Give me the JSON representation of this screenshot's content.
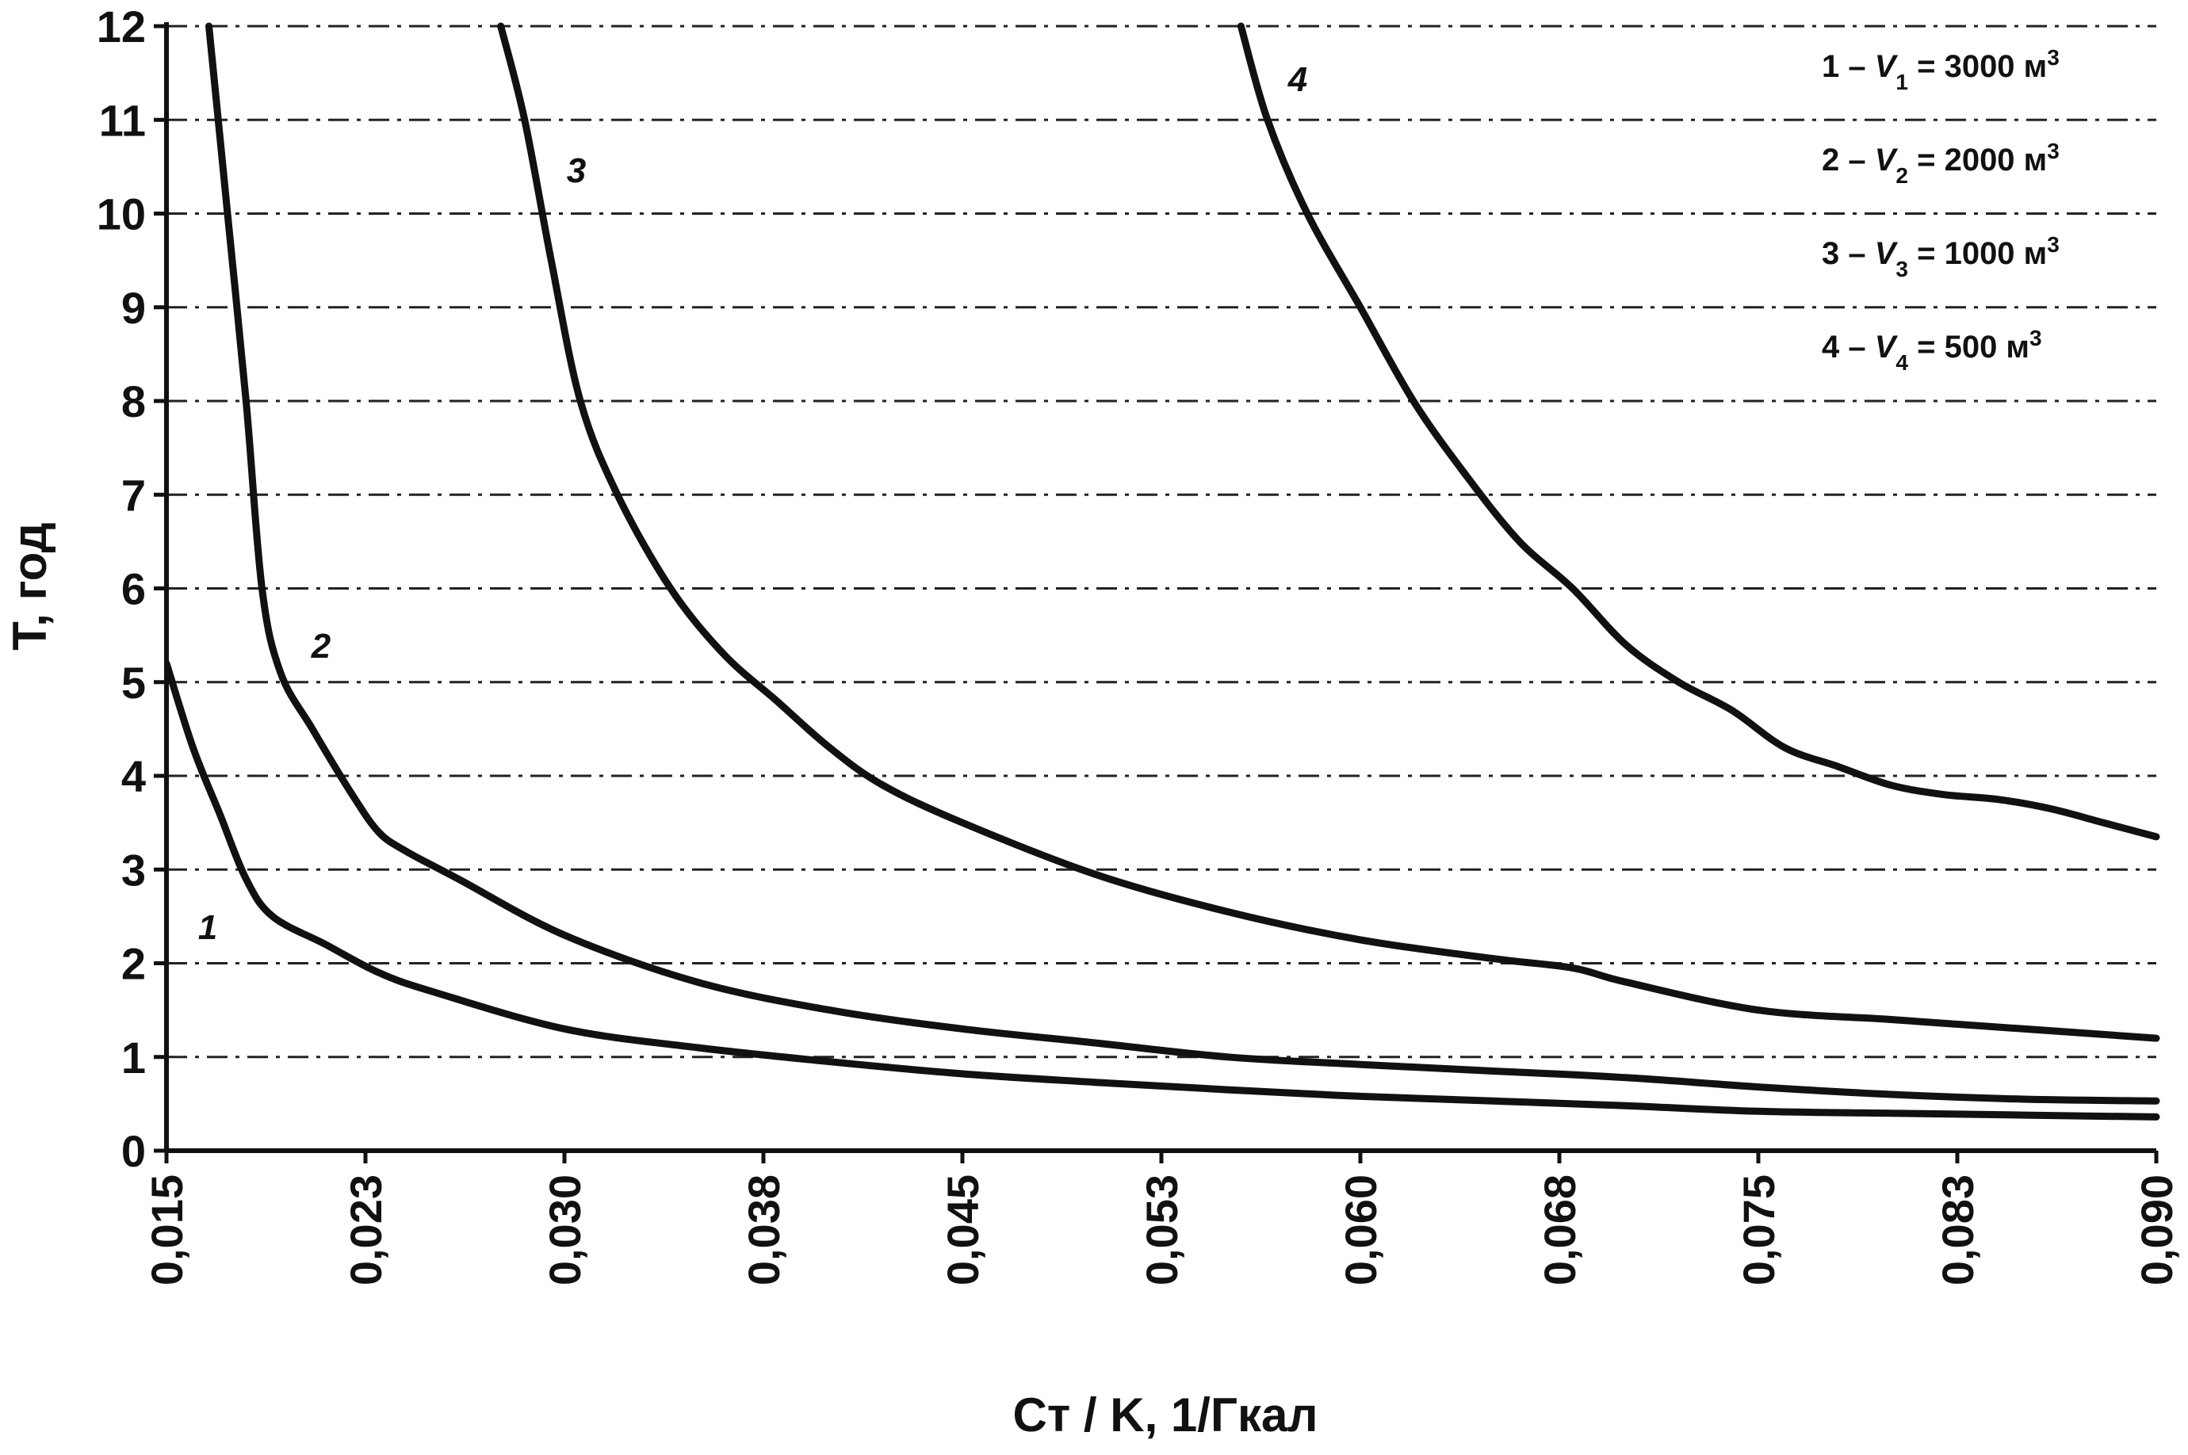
{
  "chart_data": {
    "type": "line",
    "xlabel": "Cт / K, 1/Гкал",
    "ylabel": "T, год",
    "xlim": [
      0.015,
      0.09
    ],
    "ylim": [
      0,
      12
    ],
    "x_ticks": [
      "0,015",
      "0,023",
      "0,030",
      "0,038",
      "0,045",
      "0,053",
      "0,060",
      "0,068",
      "0,075",
      "0,083",
      "0,090"
    ],
    "y_ticks": [
      "0",
      "1",
      "2",
      "3",
      "4",
      "5",
      "6",
      "7",
      "8",
      "9",
      "10",
      "11",
      "12"
    ],
    "grid": "horizontal dash-dot",
    "legend_position": "top-right",
    "legend": [
      {
        "num": "1",
        "var": "V",
        "sub": "1",
        "value": "3000 м",
        "sup": "3"
      },
      {
        "num": "2",
        "var": "V",
        "sub": "2",
        "value": "2000 м",
        "sup": "3"
      },
      {
        "num": "3",
        "var": "V",
        "sub": "3",
        "value": "1000 м",
        "sup": "3"
      },
      {
        "num": "4",
        "var": "V",
        "sub": "4",
        "value": "500 м",
        "sup": "3"
      }
    ],
    "series": [
      {
        "label": "1",
        "x": [
          0.015,
          0.016,
          0.017,
          0.018,
          0.019,
          0.021,
          0.023,
          0.025,
          0.03,
          0.035,
          0.04,
          0.045,
          0.05,
          0.055,
          0.06,
          0.065,
          0.07,
          0.075,
          0.08,
          0.085,
          0.09
        ],
        "y": [
          5.2,
          4.3,
          3.6,
          2.9,
          2.5,
          2.2,
          1.9,
          1.7,
          1.3,
          1.1,
          0.95,
          0.82,
          0.73,
          0.65,
          0.58,
          0.53,
          0.48,
          0.42,
          0.4,
          0.38,
          0.36
        ]
      },
      {
        "label": "2",
        "x": [
          0.0166,
          0.0173,
          0.018,
          0.0186,
          0.0193,
          0.0205,
          0.022,
          0.023,
          0.024,
          0.026,
          0.03,
          0.035,
          0.04,
          0.045,
          0.05,
          0.055,
          0.06,
          0.065,
          0.07,
          0.075,
          0.08,
          0.085,
          0.09
        ],
        "y": [
          12.0,
          10.0,
          8.0,
          6.0,
          5.1,
          4.5,
          3.8,
          3.4,
          3.2,
          2.9,
          2.3,
          1.8,
          1.5,
          1.3,
          1.15,
          1.0,
          0.92,
          0.85,
          0.78,
          0.68,
          0.6,
          0.55,
          0.53
        ]
      },
      {
        "label": "3",
        "x": [
          0.0276,
          0.0285,
          0.0295,
          0.0306,
          0.032,
          0.034,
          0.036,
          0.038,
          0.04,
          0.042,
          0.045,
          0.05,
          0.055,
          0.06,
          0.065,
          0.068,
          0.07,
          0.075,
          0.08,
          0.085,
          0.09
        ],
        "y": [
          12.0,
          11.0,
          9.5,
          8.0,
          7.0,
          6.0,
          5.3,
          4.8,
          4.3,
          3.9,
          3.5,
          2.95,
          2.55,
          2.25,
          2.05,
          1.95,
          1.8,
          1.5,
          1.4,
          1.3,
          1.2
        ]
      },
      {
        "label": "4",
        "x": [
          0.0555,
          0.0565,
          0.058,
          0.06,
          0.062,
          0.064,
          0.066,
          0.068,
          0.07,
          0.072,
          0.074,
          0.076,
          0.078,
          0.08,
          0.082,
          0.084,
          0.086,
          0.088,
          0.09
        ],
        "y": [
          12.0,
          11.0,
          10.0,
          9.0,
          8.0,
          7.2,
          6.5,
          6.0,
          5.4,
          5.0,
          4.7,
          4.3,
          4.1,
          3.9,
          3.8,
          3.75,
          3.65,
          3.5,
          3.35
        ]
      }
    ]
  }
}
